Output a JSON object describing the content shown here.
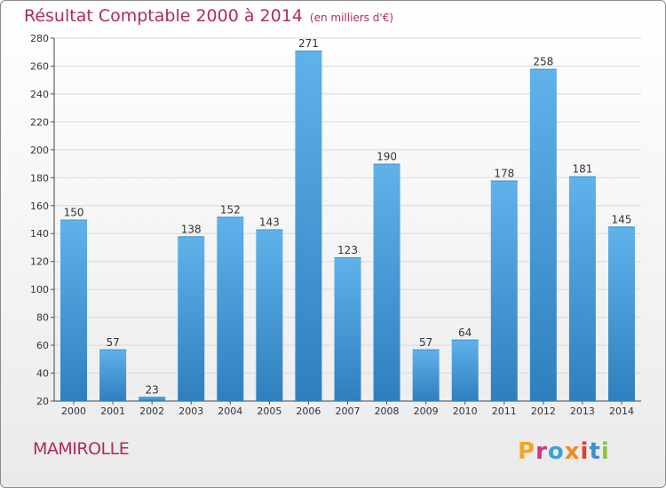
{
  "header": {
    "title": "Résultat Comptable 2000 à 2014",
    "subtitle": "(en milliers d'€)"
  },
  "footer": {
    "city": "MAMIROLLE",
    "logo_text": "Proxiti",
    "logo_colors": [
      "#f5a623",
      "#d6317b",
      "#3aa0d8",
      "#f08a1d",
      "#e63a2f",
      "#3a8fd8",
      "#8bc53f"
    ]
  },
  "colors": {
    "title": "#b02a5e",
    "bar_top": "#5fb2ea",
    "bar_bottom": "#2f7fbf",
    "grid": "#d9d9d9",
    "axis_text": "#333333"
  },
  "chart_data": {
    "type": "bar",
    "title": "Résultat Comptable 2000 à 2014",
    "xlabel": "",
    "ylabel": "",
    "categories": [
      "2000",
      "2001",
      "2002",
      "2003",
      "2004",
      "2005",
      "2006",
      "2007",
      "2008",
      "2009",
      "2010",
      "2011",
      "2012",
      "2013",
      "2014"
    ],
    "values": [
      150,
      57,
      23,
      138,
      152,
      143,
      271,
      123,
      190,
      57,
      64,
      178,
      258,
      181,
      145
    ],
    "ylim": [
      20,
      280
    ],
    "yticks": [
      20,
      40,
      60,
      80,
      100,
      120,
      140,
      160,
      180,
      200,
      220,
      240,
      260,
      280
    ],
    "grid": true,
    "data_labels": true
  }
}
